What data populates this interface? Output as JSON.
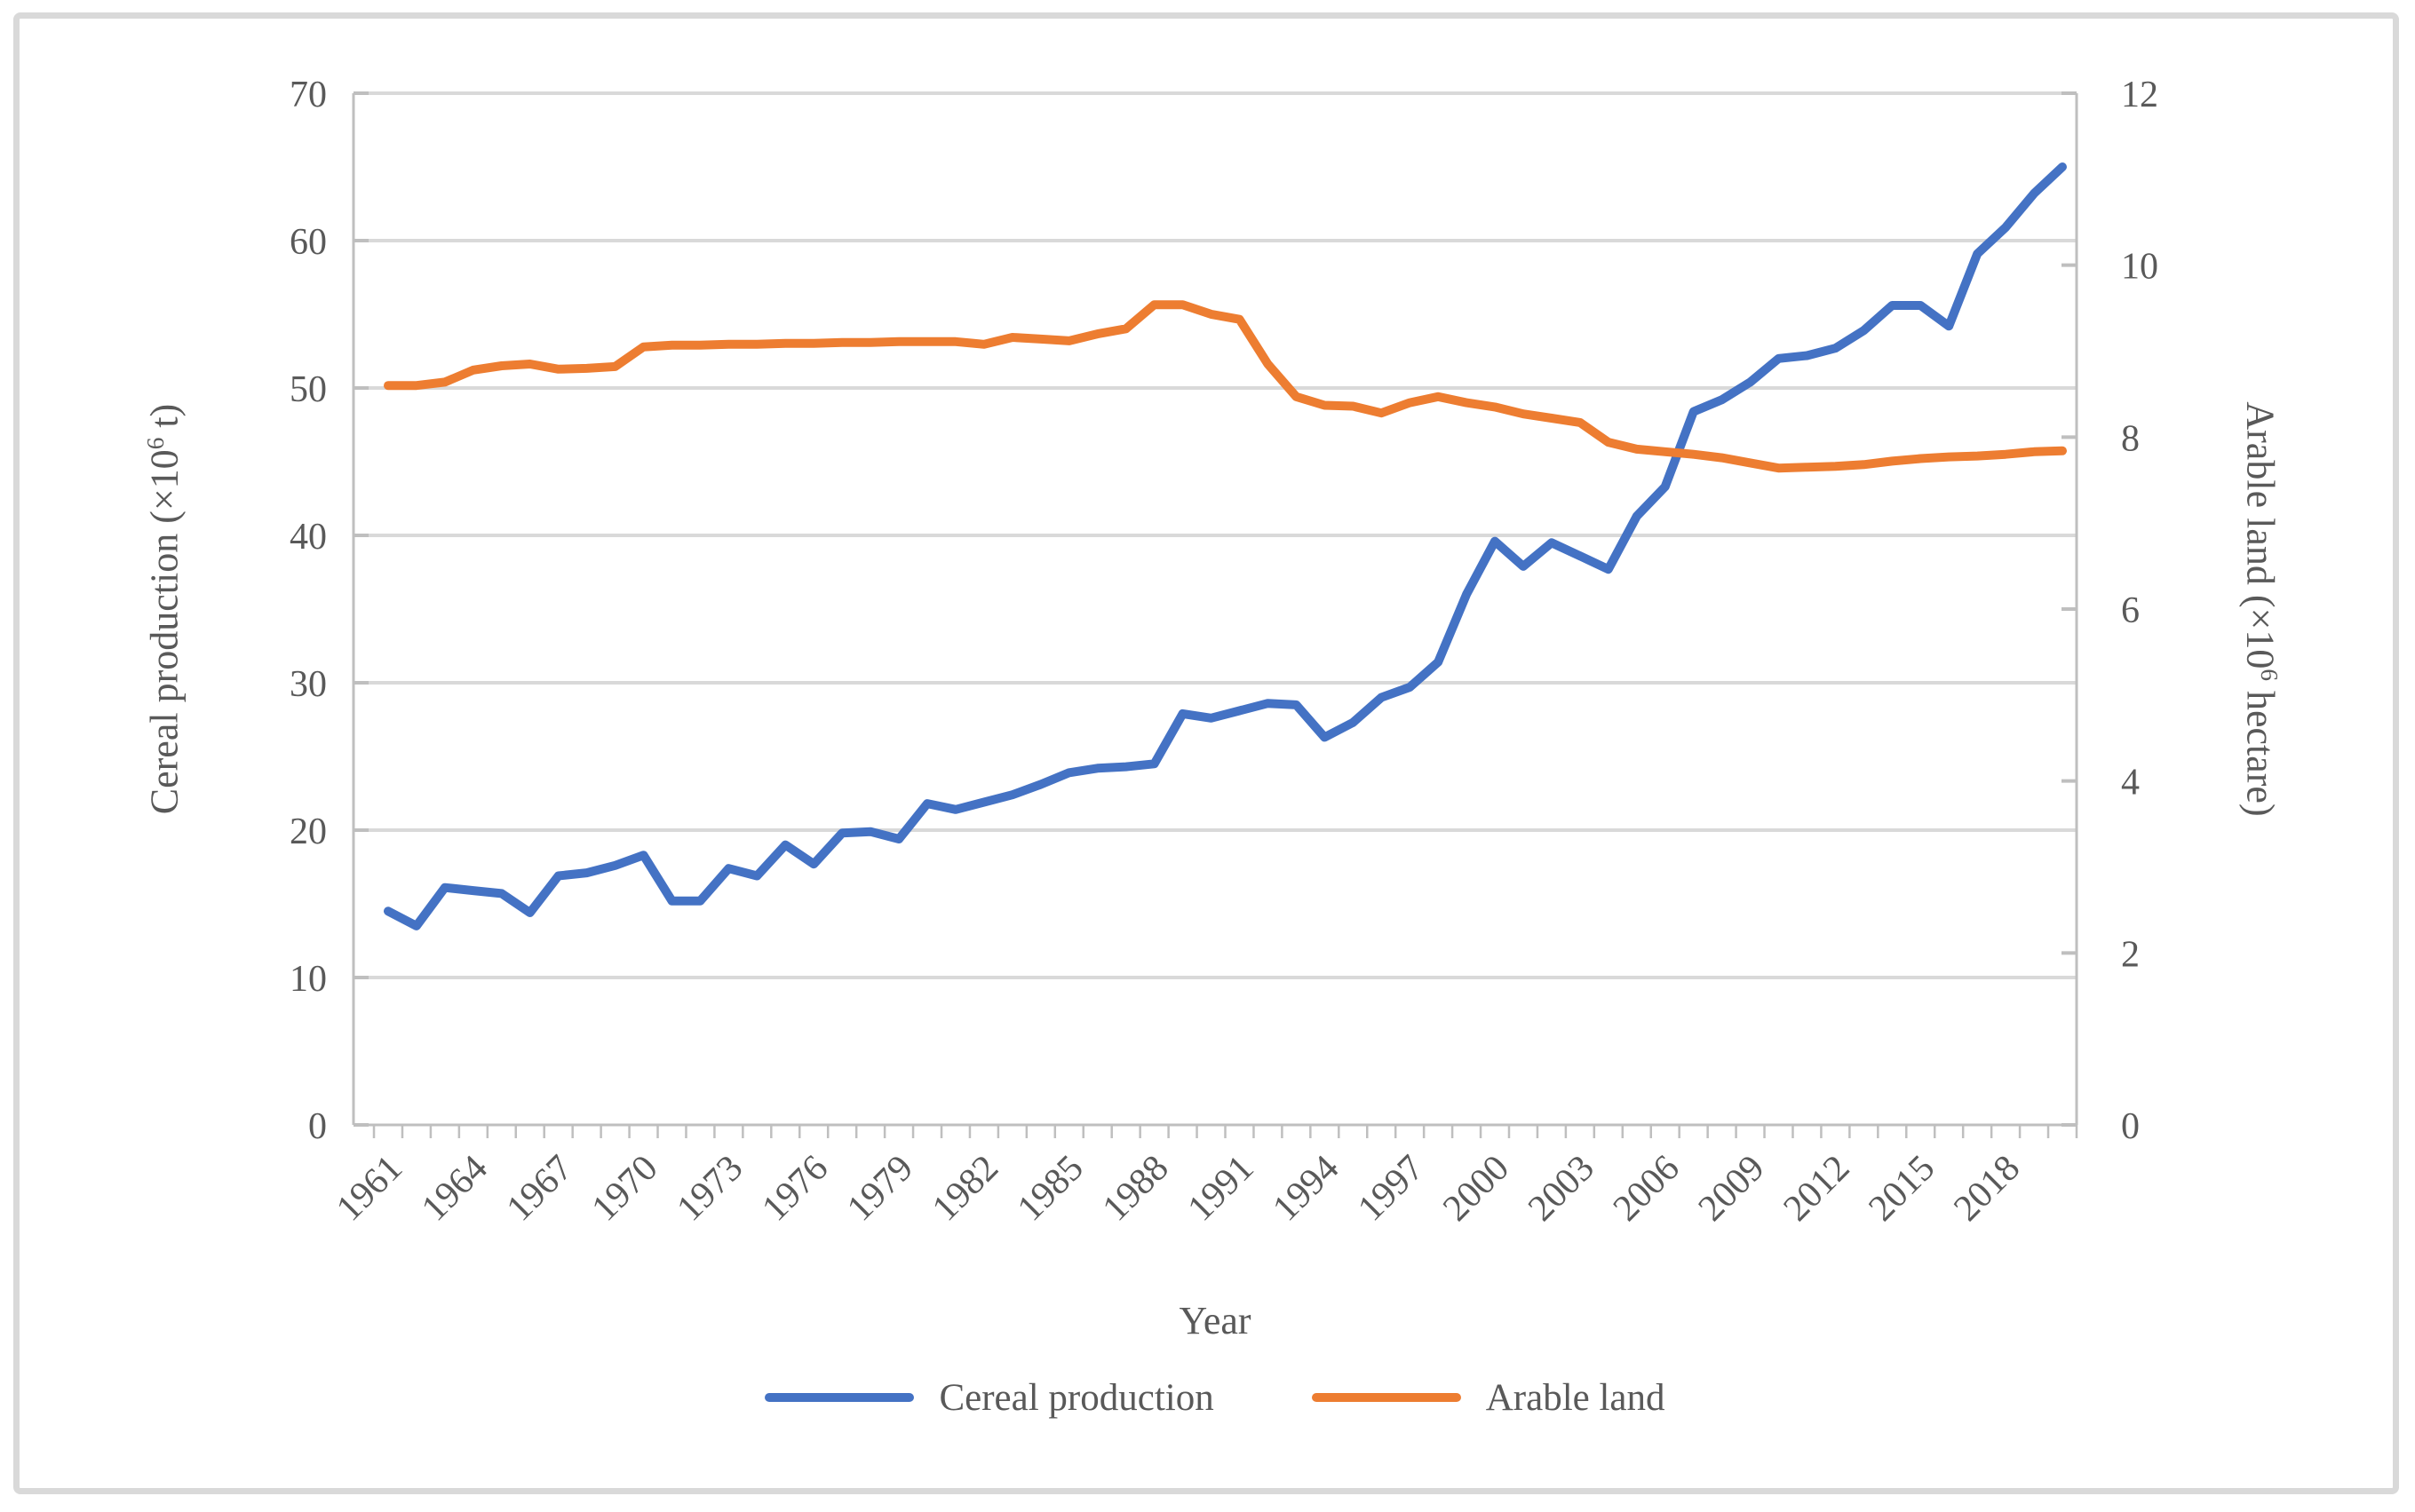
{
  "figure": {
    "background": "#ffffff",
    "border_color": "#D9D9D9",
    "text_color": "#595959",
    "axis_line_color": "#BFBFBF",
    "gridline_color": "#D9D9D9"
  },
  "axes": {
    "left_title_prefix": "Cereal production (×10",
    "left_title_sup": "6",
    "left_title_suffix": " t)",
    "right_title_prefix": "Arable land (×10",
    "right_title_sup": "6",
    "right_title_suffix": " hectare)",
    "x_title": "Year"
  },
  "legend": {
    "items": [
      {
        "label": "Cereal production",
        "color": "#4472C4"
      },
      {
        "label": "Arable land",
        "color": "#ED7D31"
      }
    ]
  },
  "chart_data": {
    "type": "line",
    "title": "",
    "xlabel": "Year",
    "ylabel_left": "Cereal production (×10⁶ t)",
    "ylabel_right": "Arable land (×10⁶ hectare)",
    "ylim_left": [
      0,
      70
    ],
    "ylim_right": [
      0,
      12
    ],
    "yticks_left": [
      0,
      10,
      20,
      30,
      40,
      50,
      60,
      70
    ],
    "yticks_right": [
      0,
      2,
      4,
      6,
      8,
      10,
      12
    ],
    "grid": true,
    "legend_position": "bottom",
    "x": [
      1961,
      1962,
      1963,
      1964,
      1965,
      1966,
      1967,
      1968,
      1969,
      1970,
      1971,
      1972,
      1973,
      1974,
      1975,
      1976,
      1977,
      1978,
      1979,
      1980,
      1981,
      1982,
      1983,
      1984,
      1985,
      1986,
      1987,
      1988,
      1989,
      1990,
      1991,
      1992,
      1993,
      1994,
      1995,
      1996,
      1997,
      1998,
      1999,
      2000,
      2001,
      2002,
      2003,
      2004,
      2005,
      2006,
      2007,
      2008,
      2009,
      2010,
      2011,
      2012,
      2013,
      2014,
      2015,
      2016,
      2017,
      2018,
      2019,
      2020
    ],
    "xtick_labels": [
      "1961",
      "1964",
      "1967",
      "1970",
      "1973",
      "1976",
      "1979",
      "1982",
      "1985",
      "1988",
      "1991",
      "1994",
      "1997",
      "2000",
      "2003",
      "2006",
      "2009",
      "2012",
      "2015",
      "2018"
    ],
    "series": [
      {
        "name": "Cereal production",
        "axis": "left",
        "color": "#4472C4",
        "values": [
          14.5,
          13.5,
          16.1,
          15.9,
          15.7,
          14.4,
          16.9,
          17.1,
          17.6,
          18.3,
          15.2,
          15.2,
          17.4,
          16.9,
          19.0,
          17.7,
          19.8,
          19.9,
          19.4,
          21.8,
          21.4,
          21.9,
          22.4,
          23.1,
          23.9,
          24.2,
          24.3,
          24.5,
          27.9,
          27.6,
          28.1,
          28.6,
          28.5,
          26.3,
          27.3,
          29.0,
          29.7,
          31.4,
          36.0,
          39.6,
          37.9,
          39.5,
          38.6,
          37.7,
          41.3,
          43.3,
          48.4,
          49.2,
          50.4,
          52.0,
          52.2,
          52.7,
          53.9,
          55.6,
          55.6,
          54.2,
          59.1,
          60.9,
          63.2,
          65.0
        ]
      },
      {
        "name": "Arable land",
        "axis": "right",
        "color": "#ED7D31",
        "values": [
          8.6,
          8.6,
          8.64,
          8.78,
          8.83,
          8.85,
          8.79,
          8.8,
          8.82,
          9.05,
          9.07,
          9.07,
          9.08,
          9.08,
          9.09,
          9.09,
          9.1,
          9.1,
          9.11,
          9.11,
          9.11,
          9.08,
          9.16,
          9.14,
          9.12,
          9.2,
          9.26,
          9.54,
          9.54,
          9.43,
          9.37,
          8.85,
          8.47,
          8.37,
          8.36,
          8.28,
          8.4,
          8.47,
          8.4,
          8.35,
          8.27,
          8.22,
          8.17,
          7.94,
          7.86,
          7.83,
          7.8,
          7.76,
          7.7,
          7.64,
          7.65,
          7.66,
          7.68,
          7.72,
          7.75,
          7.77,
          7.78,
          7.8,
          7.83,
          7.84
        ]
      }
    ]
  }
}
